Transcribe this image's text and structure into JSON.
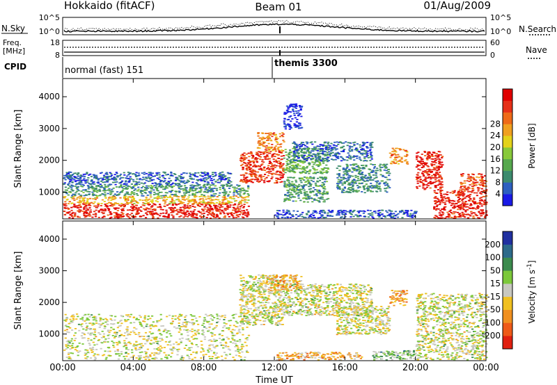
{
  "header": {
    "station": "Hokkaido (fitACF)",
    "beam": "Beam 01",
    "date": "01/Aug/2009"
  },
  "noise_panel": {
    "left_label": "N.Sky",
    "right_label": "N.Search",
    "left_ticks": [
      "10^5",
      "10^0"
    ],
    "right_ticks": [
      "10^5",
      "10^0"
    ]
  },
  "freq_panel": {
    "left_label_line1": "Freq.",
    "left_label_line2": "[MHz]",
    "right_label": "Nave",
    "left_ticks": [
      "18",
      "8"
    ],
    "right_ticks": [
      "60",
      "0"
    ]
  },
  "cpid_panel": {
    "label": "CPID",
    "programs": [
      {
        "name": "normal (fast) 151",
        "start_hour": 0
      },
      {
        "name": "themis 3300",
        "start_hour": 12.0
      }
    ]
  },
  "x_axis": {
    "label": "Time UT",
    "ticks": [
      "00:00",
      "04:00",
      "08:00",
      "12:00",
      "16:00",
      "20:00",
      "00:00"
    ]
  },
  "chart_data": [
    {
      "type": "heatmap",
      "title": "",
      "xlabel": "Time UT",
      "ylabel": "Slant Range [km]",
      "xlim": [
        0,
        24
      ],
      "ylim": [
        180,
        4550
      ],
      "yticks": [
        "1000",
        "2000",
        "3000",
        "4000"
      ],
      "colorbar": {
        "label": "Power [dB]",
        "ticks": [
          "4",
          "8",
          "12",
          "16",
          "20",
          "24",
          "28"
        ],
        "colors": [
          "#1a1ae6",
          "#2d5fc0",
          "#3c8b6e",
          "#56a84e",
          "#88c93a",
          "#e3d21a",
          "#f0a020",
          "#ee6a18",
          "#e63018",
          "#e00000"
        ]
      },
      "regions": [
        {
          "t0": 0,
          "t1": 10.5,
          "r0": 200,
          "r1": 650,
          "level": 0.9
        },
        {
          "t0": 0,
          "t1": 10.5,
          "r0": 650,
          "r1": 900,
          "level": 0.62
        },
        {
          "t0": 0,
          "t1": 10.5,
          "r0": 900,
          "r1": 1250,
          "level": 0.28
        },
        {
          "t0": 0,
          "t1": 9.5,
          "r0": 1250,
          "r1": 1650,
          "level": 0.16
        },
        {
          "t0": 10.0,
          "t1": 12.5,
          "r0": 1300,
          "r1": 2300,
          "level": 0.85
        },
        {
          "t0": 11.0,
          "t1": 12.5,
          "r0": 2300,
          "r1": 2900,
          "level": 0.7
        },
        {
          "t0": 12.5,
          "t1": 15.0,
          "r0": 1600,
          "r1": 2400,
          "level": 0.35
        },
        {
          "t0": 13.0,
          "t1": 17.5,
          "r0": 2000,
          "r1": 2600,
          "level": 0.18
        },
        {
          "t0": 12.5,
          "t1": 15.0,
          "r0": 700,
          "r1": 1500,
          "level": 0.3
        },
        {
          "t0": 15.5,
          "t1": 18.5,
          "r0": 1000,
          "r1": 1900,
          "level": 0.25
        },
        {
          "t0": 18.5,
          "t1": 19.5,
          "r0": 1900,
          "r1": 2400,
          "level": 0.7
        },
        {
          "t0": 20.0,
          "t1": 21.5,
          "r0": 1100,
          "r1": 2300,
          "level": 0.92
        },
        {
          "t0": 21.0,
          "t1": 24.0,
          "r0": 200,
          "r1": 1100,
          "level": 0.9
        },
        {
          "t0": 22.5,
          "t1": 24.0,
          "r0": 1100,
          "r1": 1600,
          "level": 0.8
        },
        {
          "t0": 12.0,
          "t1": 20.0,
          "r0": 200,
          "r1": 450,
          "level": 0.12
        },
        {
          "t0": 12.5,
          "t1": 13.5,
          "r0": 3000,
          "r1": 3800,
          "level": 0.05
        }
      ]
    },
    {
      "type": "heatmap",
      "title": "",
      "xlabel": "Time UT",
      "ylabel": "Slant Range [km]",
      "xlim": [
        0,
        24
      ],
      "ylim": [
        180,
        4550
      ],
      "yticks": [
        "1000",
        "2000",
        "3000",
        "4000"
      ],
      "colorbar": {
        "label": "Velocity [m s^-1]",
        "ticks": [
          "200",
          "100",
          "50",
          "15",
          "-15",
          "-50",
          "-100",
          "-200"
        ],
        "colors": [
          "#2030a0",
          "#2d6a8a",
          "#3c8b4e",
          "#7cc83a",
          "#c8c8c0",
          "#f0c020",
          "#f09020",
          "#ee5a18",
          "#e02010"
        ]
      },
      "regions": [
        {
          "t0": 0,
          "t1": 10.5,
          "r0": 200,
          "r1": 1650,
          "level": 0.5
        },
        {
          "t0": 10.0,
          "t1": 12.5,
          "r0": 1300,
          "r1": 2900,
          "level": 0.5
        },
        {
          "t0": 12.5,
          "t1": 17.5,
          "r0": 1600,
          "r1": 2600,
          "level": 0.5
        },
        {
          "t0": 11.5,
          "t1": 13.5,
          "r0": 2400,
          "r1": 2900,
          "level": 0.35
        },
        {
          "t0": 15.5,
          "t1": 18.5,
          "r0": 1000,
          "r1": 1900,
          "level": 0.5
        },
        {
          "t0": 18.5,
          "t1": 19.5,
          "r0": 1900,
          "r1": 2400,
          "level": 0.3
        },
        {
          "t0": 20.0,
          "t1": 24.0,
          "r0": 200,
          "r1": 2300,
          "level": 0.5
        },
        {
          "t0": 17.5,
          "t1": 20.0,
          "r0": 200,
          "r1": 500,
          "level": 0.62
        },
        {
          "t0": 12.0,
          "t1": 17.0,
          "r0": 200,
          "r1": 450,
          "level": 0.35
        }
      ]
    }
  ]
}
